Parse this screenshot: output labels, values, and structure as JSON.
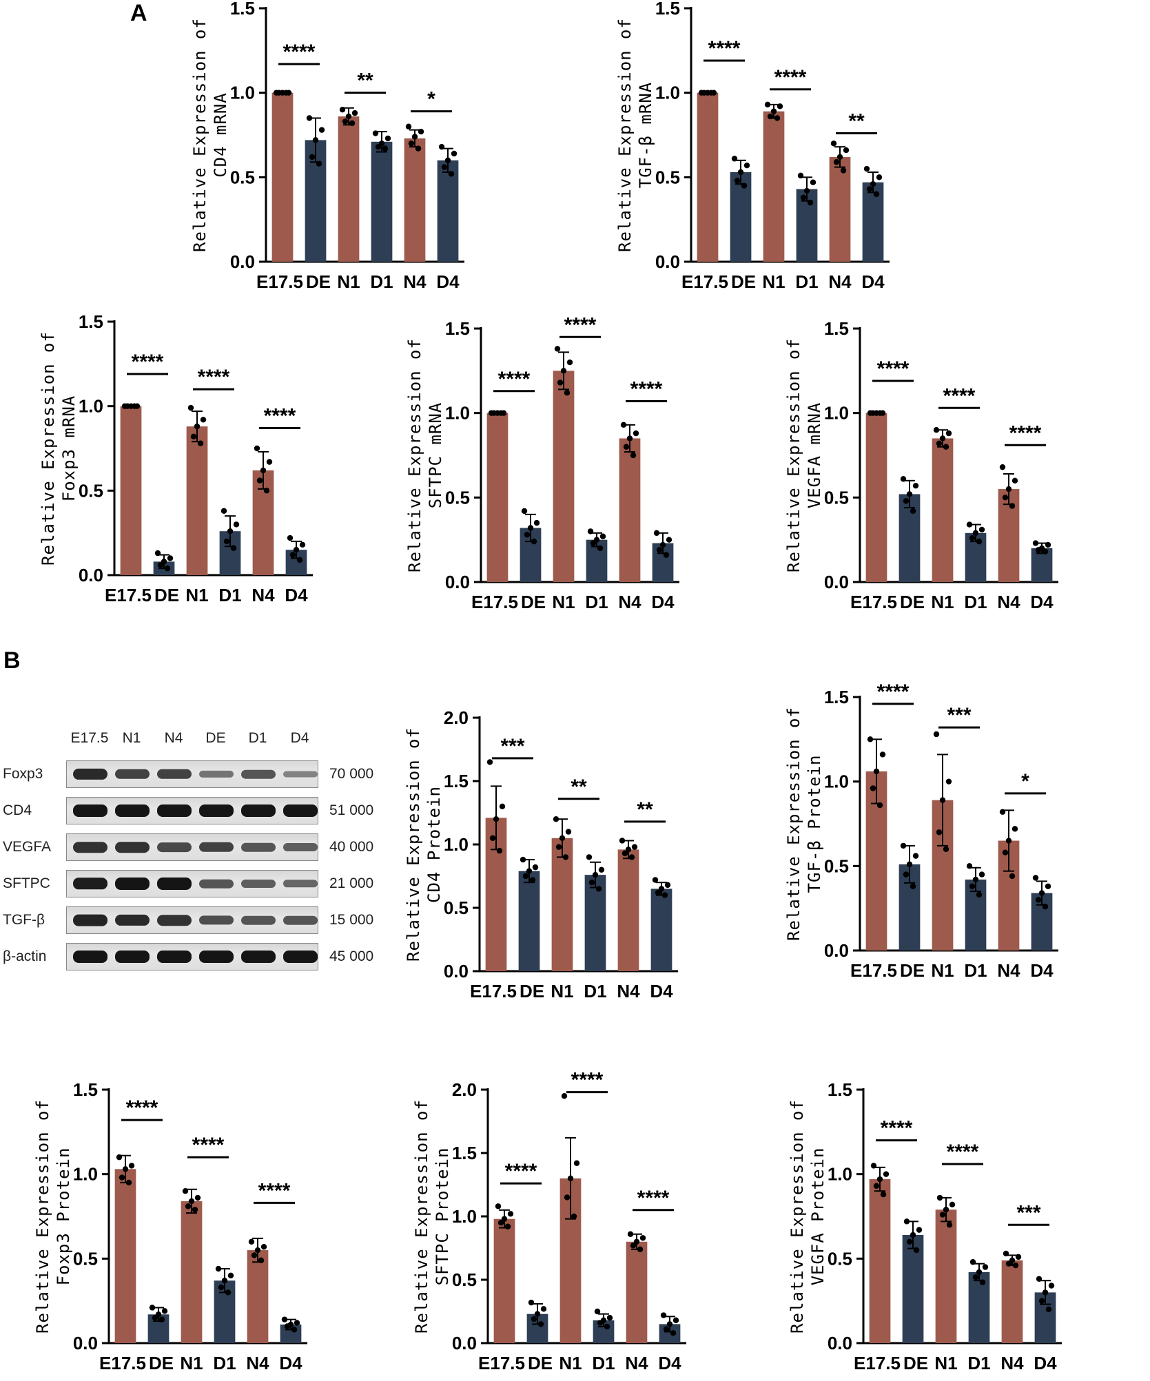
{
  "panels": {
    "A": "A",
    "B": "B"
  },
  "colors": {
    "normal": "#9e5a4c",
    "disease": "#2d3e55",
    "text": "#000000"
  },
  "chart_data": [
    {
      "id": "cd4-mrna",
      "type": "bar",
      "panel": "A",
      "ylabel_lines": [
        "Relative Expression of",
        "CD4 mRNA"
      ],
      "categories": [
        "E17.5",
        "DE",
        "N1",
        "D1",
        "N4",
        "D4"
      ],
      "values": [
        1.0,
        0.72,
        0.86,
        0.71,
        0.73,
        0.6
      ],
      "errors": [
        0.0,
        0.13,
        0.05,
        0.06,
        0.05,
        0.07
      ],
      "points": [
        [
          1,
          1,
          1,
          1,
          1
        ],
        [
          0.85,
          0.78,
          0.72,
          0.62,
          0.58
        ],
        [
          0.9,
          0.88,
          0.86,
          0.83,
          0.82
        ],
        [
          0.76,
          0.73,
          0.7,
          0.68,
          0.67
        ],
        [
          0.8,
          0.77,
          0.74,
          0.7,
          0.67
        ],
        [
          0.68,
          0.64,
          0.6,
          0.56,
          0.52
        ]
      ],
      "yticks": [
        "0.0",
        "0.5",
        "1.0",
        "1.5"
      ],
      "ylim": [
        0,
        1.5
      ],
      "significance": [
        {
          "from": 0,
          "to": 1,
          "label": "****",
          "y": 1.17
        },
        {
          "from": 2,
          "to": 3,
          "label": "**",
          "y": 1.0
        },
        {
          "from": 4,
          "to": 5,
          "label": "*",
          "y": 0.89
        }
      ]
    },
    {
      "id": "tgfb-mrna",
      "type": "bar",
      "panel": "A",
      "ylabel_lines": [
        "Relative Expression of",
        "TGF-β mRNA"
      ],
      "categories": [
        "E17.5",
        "DE",
        "N1",
        "D1",
        "N4",
        "D4"
      ],
      "values": [
        1.0,
        0.53,
        0.89,
        0.43,
        0.62,
        0.47
      ],
      "errors": [
        0.0,
        0.07,
        0.04,
        0.07,
        0.06,
        0.06
      ],
      "points": [
        [
          1,
          1,
          1,
          1,
          1
        ],
        [
          0.61,
          0.57,
          0.53,
          0.48,
          0.45
        ],
        [
          0.93,
          0.92,
          0.89,
          0.86,
          0.85
        ],
        [
          0.51,
          0.47,
          0.42,
          0.38,
          0.35
        ],
        [
          0.7,
          0.66,
          0.62,
          0.59,
          0.54
        ],
        [
          0.55,
          0.5,
          0.46,
          0.43,
          0.4
        ]
      ],
      "yticks": [
        "0.0",
        "0.5",
        "1.0",
        "1.5"
      ],
      "ylim": [
        0,
        1.5
      ],
      "significance": [
        {
          "from": 0,
          "to": 1,
          "label": "****",
          "y": 1.19
        },
        {
          "from": 2,
          "to": 3,
          "label": "****",
          "y": 1.02
        },
        {
          "from": 4,
          "to": 5,
          "label": "**",
          "y": 0.76
        }
      ]
    },
    {
      "id": "foxp3-mrna",
      "type": "bar",
      "panel": "A",
      "ylabel_lines": [
        "Relative Expression of",
        "Foxp3 mRNA"
      ],
      "categories": [
        "E17.5",
        "DE",
        "N1",
        "D1",
        "N4",
        "D4"
      ],
      "values": [
        1.0,
        0.08,
        0.88,
        0.26,
        0.62,
        0.15
      ],
      "errors": [
        0.0,
        0.04,
        0.09,
        0.09,
        0.11,
        0.05
      ],
      "points": [
        [
          1,
          1,
          1,
          1,
          1
        ],
        [
          0.13,
          0.1,
          0.08,
          0.06,
          0.04
        ],
        [
          0.99,
          0.92,
          0.88,
          0.82,
          0.78
        ],
        [
          0.38,
          0.3,
          0.26,
          0.2,
          0.16
        ],
        [
          0.75,
          0.67,
          0.62,
          0.56,
          0.5
        ],
        [
          0.22,
          0.18,
          0.15,
          0.12,
          0.09
        ]
      ],
      "yticks": [
        "0.0",
        "0.5",
        "1.0",
        "1.5"
      ],
      "ylim": [
        0,
        1.5
      ],
      "significance": [
        {
          "from": 0,
          "to": 1,
          "label": "****",
          "y": 1.19
        },
        {
          "from": 2,
          "to": 3,
          "label": "****",
          "y": 1.1
        },
        {
          "from": 4,
          "to": 5,
          "label": "****",
          "y": 0.87
        }
      ]
    },
    {
      "id": "sftpc-mrna",
      "type": "bar",
      "panel": "A",
      "ylabel_lines": [
        "Relative Expression of",
        "SFTPC mRNA"
      ],
      "categories": [
        "E17.5",
        "DE",
        "N1",
        "D1",
        "N4",
        "D4"
      ],
      "values": [
        1.0,
        0.32,
        1.25,
        0.25,
        0.85,
        0.23
      ],
      "errors": [
        0.0,
        0.08,
        0.11,
        0.04,
        0.08,
        0.06
      ],
      "points": [
        [
          1,
          1,
          1,
          1,
          1
        ],
        [
          0.42,
          0.35,
          0.32,
          0.28,
          0.24
        ],
        [
          1.38,
          1.3,
          1.25,
          1.18,
          1.12
        ],
        [
          0.3,
          0.27,
          0.25,
          0.23,
          0.2
        ],
        [
          0.93,
          0.88,
          0.85,
          0.8,
          0.75
        ],
        [
          0.29,
          0.25,
          0.22,
          0.19,
          0.16
        ]
      ],
      "yticks": [
        "0.0",
        "0.5",
        "1.0",
        "1.5"
      ],
      "ylim": [
        0,
        1.5
      ],
      "significance": [
        {
          "from": 0,
          "to": 1,
          "label": "****",
          "y": 1.13
        },
        {
          "from": 2,
          "to": 3,
          "label": "****",
          "y": 1.45
        },
        {
          "from": 4,
          "to": 5,
          "label": "****",
          "y": 1.07
        }
      ]
    },
    {
      "id": "vegfa-mrna",
      "type": "bar",
      "panel": "A",
      "ylabel_lines": [
        "Relative Expression of",
        "VEGFA mRNA"
      ],
      "categories": [
        "E17.5",
        "DE",
        "N1",
        "D1",
        "N4",
        "D4"
      ],
      "values": [
        1.0,
        0.52,
        0.85,
        0.29,
        0.55,
        0.2
      ],
      "errors": [
        0.0,
        0.08,
        0.05,
        0.05,
        0.09,
        0.03
      ],
      "points": [
        [
          1,
          1,
          1,
          1,
          1
        ],
        [
          0.61,
          0.57,
          0.52,
          0.48,
          0.42
        ],
        [
          0.9,
          0.88,
          0.85,
          0.82,
          0.8
        ],
        [
          0.34,
          0.31,
          0.29,
          0.26,
          0.24
        ],
        [
          0.68,
          0.6,
          0.55,
          0.5,
          0.45
        ],
        [
          0.23,
          0.22,
          0.2,
          0.19,
          0.18
        ]
      ],
      "yticks": [
        "0.0",
        "0.5",
        "1.0",
        "1.5"
      ],
      "ylim": [
        0,
        1.5
      ],
      "significance": [
        {
          "from": 0,
          "to": 1,
          "label": "****",
          "y": 1.19
        },
        {
          "from": 2,
          "to": 3,
          "label": "****",
          "y": 1.03
        },
        {
          "from": 4,
          "to": 5,
          "label": "****",
          "y": 0.81
        }
      ]
    },
    {
      "id": "cd4-protein",
      "type": "bar",
      "panel": "B",
      "ylabel_lines": [
        "Relative Expression of",
        "CD4 Protein"
      ],
      "categories": [
        "E17.5",
        "DE",
        "N1",
        "D1",
        "N4",
        "D4"
      ],
      "values": [
        1.21,
        0.79,
        1.05,
        0.76,
        0.96,
        0.65
      ],
      "errors": [
        0.25,
        0.09,
        0.15,
        0.1,
        0.07,
        0.05
      ],
      "points": [
        [
          1.65,
          1.3,
          1.2,
          1.05,
          0.95
        ],
        [
          0.88,
          0.82,
          0.79,
          0.75,
          0.72
        ],
        [
          1.2,
          1.1,
          1.05,
          0.98,
          0.9
        ],
        [
          0.9,
          0.8,
          0.76,
          0.7,
          0.65
        ],
        [
          1.03,
          0.98,
          0.96,
          0.93,
          0.9
        ],
        [
          0.72,
          0.68,
          0.65,
          0.62,
          0.6
        ]
      ],
      "yticks": [
        "0.0",
        "0.5",
        "1.0",
        "1.5",
        "2.0"
      ],
      "ylim": [
        0,
        2.0
      ],
      "significance": [
        {
          "from": 0,
          "to": 1,
          "label": "***",
          "y": 1.68
        },
        {
          "from": 2,
          "to": 3,
          "label": "**",
          "y": 1.36
        },
        {
          "from": 4,
          "to": 5,
          "label": "**",
          "y": 1.18
        }
      ]
    },
    {
      "id": "tgfb-protein",
      "type": "bar",
      "panel": "B",
      "ylabel_lines": [
        "Relative Expression of",
        "TGF-β Protein"
      ],
      "categories": [
        "E17.5",
        "DE",
        "N1",
        "D1",
        "N4",
        "D4"
      ],
      "values": [
        1.06,
        0.51,
        0.89,
        0.42,
        0.65,
        0.34
      ],
      "errors": [
        0.19,
        0.11,
        0.27,
        0.07,
        0.18,
        0.07
      ],
      "points": [
        [
          1.25,
          1.16,
          1.06,
          0.96,
          0.86
        ],
        [
          0.62,
          0.56,
          0.51,
          0.45,
          0.38
        ],
        [
          1.28,
          1.0,
          0.89,
          0.7,
          0.6
        ],
        [
          0.5,
          0.45,
          0.42,
          0.38,
          0.33
        ],
        [
          0.82,
          0.72,
          0.65,
          0.58,
          0.44
        ],
        [
          0.43,
          0.38,
          0.34,
          0.3,
          0.26
        ]
      ],
      "yticks": [
        "0.0",
        "0.5",
        "1.0",
        "1.5"
      ],
      "ylim": [
        0,
        1.5
      ],
      "significance": [
        {
          "from": 0,
          "to": 1,
          "label": "****",
          "y": 1.46
        },
        {
          "from": 2,
          "to": 3,
          "label": "***",
          "y": 1.32
        },
        {
          "from": 4,
          "to": 5,
          "label": "*",
          "y": 0.93
        }
      ]
    },
    {
      "id": "foxp3-protein",
      "type": "bar",
      "panel": "B",
      "ylabel_lines": [
        "Relative Expression of",
        "Foxp3 Protein"
      ],
      "categories": [
        "E17.5",
        "DE",
        "N1",
        "D1",
        "N4",
        "D4"
      ],
      "values": [
        1.03,
        0.17,
        0.84,
        0.37,
        0.55,
        0.11
      ],
      "errors": [
        0.08,
        0.04,
        0.07,
        0.07,
        0.07,
        0.03
      ],
      "points": [
        [
          1.1,
          1.05,
          1.03,
          0.98,
          0.95
        ],
        [
          0.21,
          0.19,
          0.17,
          0.15,
          0.14
        ],
        [
          0.9,
          0.86,
          0.84,
          0.81,
          0.79
        ],
        [
          0.44,
          0.4,
          0.37,
          0.33,
          0.3
        ],
        [
          0.6,
          0.57,
          0.55,
          0.52,
          0.49
        ],
        [
          0.14,
          0.12,
          0.11,
          0.1,
          0.08
        ]
      ],
      "yticks": [
        "0.0",
        "0.5",
        "1.0",
        "1.5"
      ],
      "ylim": [
        0,
        1.5
      ],
      "significance": [
        {
          "from": 0,
          "to": 1,
          "label": "****",
          "y": 1.32
        },
        {
          "from": 2,
          "to": 3,
          "label": "****",
          "y": 1.1
        },
        {
          "from": 4,
          "to": 5,
          "label": "****",
          "y": 0.83
        }
      ]
    },
    {
      "id": "sftpc-protein",
      "type": "bar",
      "panel": "B",
      "ylabel_lines": [
        "Relative Expression of",
        "SFTPC Protein"
      ],
      "categories": [
        "E17.5",
        "DE",
        "N1",
        "D1",
        "N4",
        "D4"
      ],
      "values": [
        0.98,
        0.23,
        1.3,
        0.18,
        0.8,
        0.15
      ],
      "errors": [
        0.07,
        0.08,
        0.32,
        0.05,
        0.06,
        0.06
      ],
      "points": [
        [
          1.08,
          1.02,
          0.98,
          0.95,
          0.92
        ],
        [
          0.32,
          0.27,
          0.23,
          0.19,
          0.15
        ],
        [
          1.95,
          1.42,
          1.3,
          1.15,
          1.0
        ],
        [
          0.25,
          0.2,
          0.18,
          0.16,
          0.13
        ],
        [
          0.86,
          0.83,
          0.8,
          0.77,
          0.74
        ],
        [
          0.22,
          0.18,
          0.15,
          0.11,
          0.08
        ]
      ],
      "yticks": [
        "0.0",
        "0.5",
        "1.0",
        "1.5",
        "2.0"
      ],
      "ylim": [
        0,
        2.0
      ],
      "significance": [
        {
          "from": 0,
          "to": 1,
          "label": "****",
          "y": 1.26
        },
        {
          "from": 2,
          "to": 3,
          "label": "****",
          "y": 1.98
        },
        {
          "from": 4,
          "to": 5,
          "label": "****",
          "y": 1.05
        }
      ]
    },
    {
      "id": "vegfa-protein",
      "type": "bar",
      "panel": "B",
      "ylabel_lines": [
        "Relative Expression of",
        "VEGFA Protein"
      ],
      "categories": [
        "E17.5",
        "DE",
        "N1",
        "D1",
        "N4",
        "D4"
      ],
      "values": [
        0.97,
        0.64,
        0.79,
        0.42,
        0.49,
        0.3
      ],
      "errors": [
        0.07,
        0.08,
        0.07,
        0.05,
        0.03,
        0.07
      ],
      "points": [
        [
          1.05,
          1.0,
          0.97,
          0.93,
          0.88
        ],
        [
          0.72,
          0.67,
          0.64,
          0.6,
          0.55
        ],
        [
          0.86,
          0.82,
          0.79,
          0.76,
          0.7
        ],
        [
          0.48,
          0.45,
          0.42,
          0.39,
          0.36
        ],
        [
          0.53,
          0.51,
          0.49,
          0.47,
          0.46
        ],
        [
          0.38,
          0.34,
          0.3,
          0.25,
          0.2
        ]
      ],
      "yticks": [
        "0.0",
        "0.5",
        "1.0",
        "1.5"
      ],
      "ylim": [
        0,
        1.5
      ],
      "significance": [
        {
          "from": 0,
          "to": 1,
          "label": "****",
          "y": 1.2
        },
        {
          "from": 2,
          "to": 3,
          "label": "****",
          "y": 1.06
        },
        {
          "from": 4,
          "to": 5,
          "label": "***",
          "y": 0.7
        }
      ]
    }
  ],
  "western_blot": {
    "lanes": [
      "E17.5",
      "N1",
      "N4",
      "DE",
      "D1",
      "D4"
    ],
    "rows": [
      {
        "protein": "Foxp3",
        "mw": "70 000",
        "intensity": [
          0.85,
          0.7,
          0.7,
          0.35,
          0.55,
          0.25
        ]
      },
      {
        "protein": "CD4",
        "mw": "51 000",
        "intensity": [
          1,
          1,
          1,
          1,
          1,
          1
        ]
      },
      {
        "protein": "VEGFA",
        "mw": "40 000",
        "intensity": [
          0.8,
          0.8,
          0.65,
          0.7,
          0.55,
          0.5
        ]
      },
      {
        "protein": "SFTPC",
        "mw": "21 000",
        "intensity": [
          0.95,
          1,
          1,
          0.55,
          0.5,
          0.45
        ]
      },
      {
        "protein": "TGF-β",
        "mw": "15 000",
        "intensity": [
          0.9,
          0.85,
          0.8,
          0.6,
          0.55,
          0.55
        ]
      },
      {
        "protein": "β-actin",
        "mw": "45 000",
        "intensity": [
          1,
          1,
          1,
          1,
          1,
          1
        ]
      }
    ]
  }
}
